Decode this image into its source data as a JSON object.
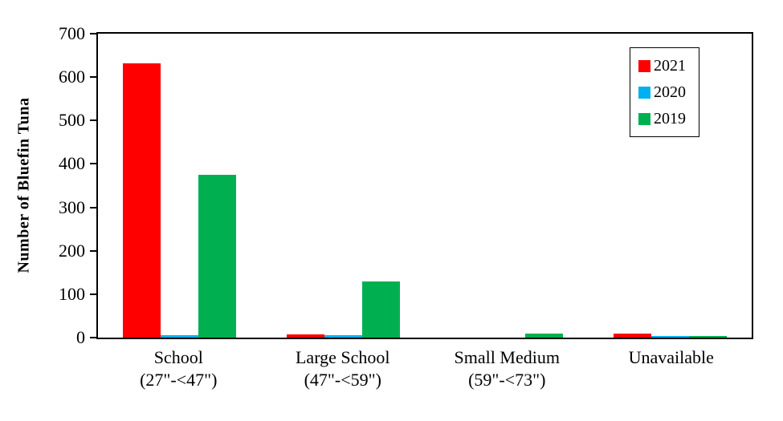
{
  "chart_data": {
    "type": "bar",
    "title": "",
    "ylabel": "Number of Bluefin Tuna",
    "xlabel": "",
    "ylim": [
      0,
      700
    ],
    "yticks": [
      0,
      100,
      200,
      300,
      400,
      500,
      600,
      700
    ],
    "grid": false,
    "legend_position": "top-right",
    "categories": [
      {
        "name": "School",
        "range": "(27\"-<47\")"
      },
      {
        "name": "Large School",
        "range": "(47\"-<59\")"
      },
      {
        "name": "Small Medium",
        "range": "(59\"-<73\")"
      },
      {
        "name": "Unavailable",
        "range": ""
      }
    ],
    "series": [
      {
        "name": "2021",
        "color": "#FF0000",
        "values": [
          632,
          8,
          0,
          10
        ]
      },
      {
        "name": "2020",
        "color": "#00B0F0",
        "values": [
          5,
          5,
          0,
          3
        ]
      },
      {
        "name": "2019",
        "color": "#00B050",
        "values": [
          375,
          130,
          10,
          3
        ]
      }
    ]
  }
}
